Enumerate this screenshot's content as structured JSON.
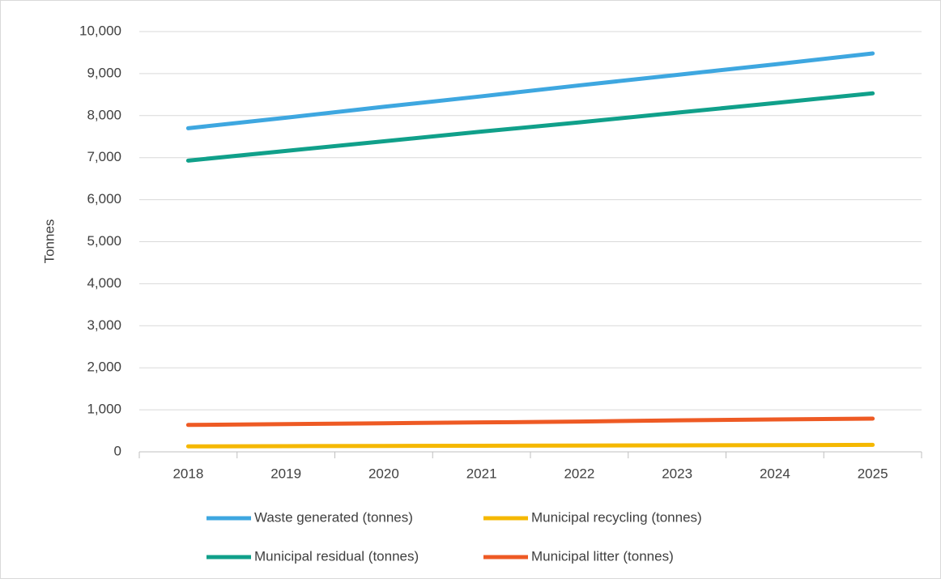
{
  "chart_data": {
    "type": "line",
    "y_label": "Tonnes",
    "categories": [
      "2018",
      "2019",
      "2020",
      "2021",
      "2022",
      "2023",
      "2024",
      "2025"
    ],
    "series": [
      {
        "name": "Waste generated (tonnes)",
        "color": "#3ea7e0",
        "values": [
          7700,
          7950,
          8210,
          8460,
          8720,
          8970,
          9220,
          9480
        ]
      },
      {
        "name": "Municipal recycling (tonnes)",
        "color": "#f5b800",
        "values": [
          130,
          135,
          140,
          145,
          150,
          155,
          160,
          165
        ]
      },
      {
        "name": "Municipal residual (tonnes)",
        "color": "#10a08a",
        "values": [
          6930,
          7160,
          7390,
          7620,
          7840,
          8070,
          8300,
          8530
        ]
      },
      {
        "name": "Municipal litter (tonnes)",
        "color": "#ee5a24",
        "values": [
          640,
          660,
          680,
          700,
          720,
          750,
          770,
          790
        ]
      }
    ],
    "ylim": [
      0,
      10000
    ],
    "yticks": [
      0,
      {
        "value": 1000,
        "label": "1,000"
      },
      {
        "value": 2000,
        "label": "2,000"
      },
      {
        "value": 3000,
        "label": "3,000"
      },
      {
        "value": 4000,
        "label": "4,000"
      },
      {
        "value": 5000,
        "label": "5,000"
      },
      {
        "value": 6000,
        "label": "6,000"
      },
      {
        "value": 7000,
        "label": "7,000"
      },
      {
        "value": 8000,
        "label": "8,000"
      },
      {
        "value": 9000,
        "label": "9,000"
      },
      {
        "value": 10000,
        "label": "10,000"
      }
    ],
    "grid": true
  }
}
